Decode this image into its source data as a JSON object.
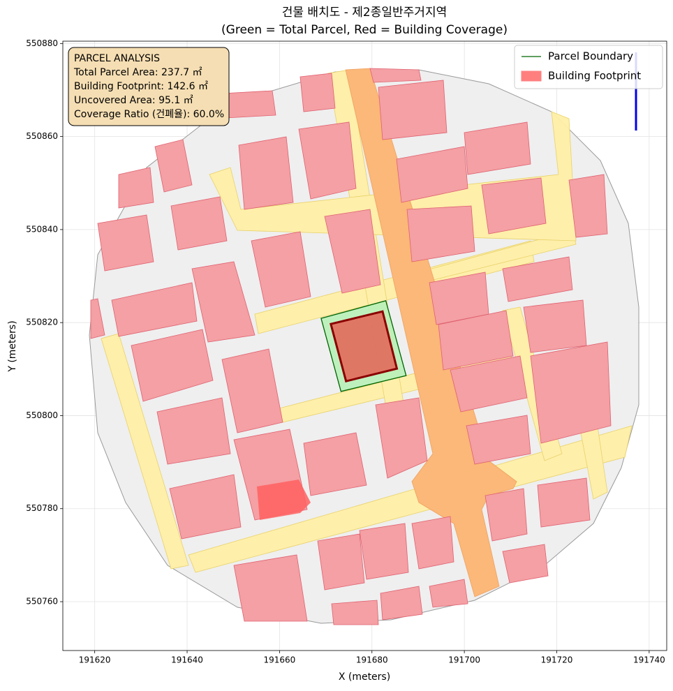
{
  "chart_data": {
    "type": "map",
    "title": "건물 배치도 - 제2종일반주거지역",
    "subtitle": "(Green = Total Parcel, Red = Building Coverage)",
    "x_label": "X (meters)",
    "y_label": "Y (meters)",
    "xlim": [
      191613.1,
      191743.8
    ],
    "ylim": [
      550749.5,
      550880.5
    ],
    "xticks": [
      191620,
      191640,
      191660,
      191680,
      191700,
      191720,
      191740
    ],
    "yticks": [
      550760,
      550780,
      550800,
      550820,
      550840,
      550860,
      550880
    ],
    "grid": true,
    "legend_loc": "upper right",
    "series": [
      {
        "name": "Parcel Boundary",
        "color": "#006400",
        "fill": "#b8f0b8",
        "x": [
          191669.0,
          191683.0,
          191687.4,
          191673.3
        ],
        "y": [
          550820.9,
          550824.7,
          550808.6,
          550805.2
        ]
      },
      {
        "name": "Building Footprint",
        "color": "#ff7f7f",
        "fill": "#e07060",
        "edge": "#8b0000",
        "x": [
          191671.1,
          191682.3,
          191685.4,
          191674.4
        ],
        "y": [
          550819.7,
          550822.4,
          550810.1,
          550807.4
        ]
      }
    ],
    "info_box": {
      "title": "PARCEL ANALYSIS",
      "lines": [
        "Total Parcel Area: 237.7 ㎡",
        "Building Footprint: 142.6 ㎡",
        "Uncovered Area: 95.1 ㎡",
        "Coverage Ratio (건폐율): 60.0%"
      ]
    }
  }
}
